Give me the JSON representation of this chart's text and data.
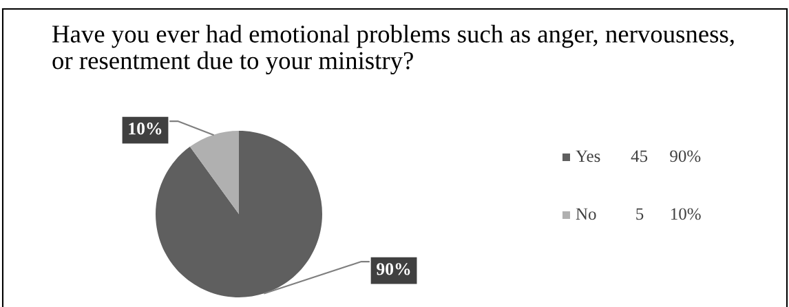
{
  "chart_data": {
    "type": "pie",
    "title": "Have you ever had emotional problems such as anger, nervousness,\nor resentment due to your ministry?",
    "categories": [
      "Yes       45     90%",
      "No         5      10%"
    ],
    "values": [
      90,
      10
    ],
    "colors": [
      "#5f5f5f",
      "#b0b0b0"
    ],
    "value_labels": [
      "90%",
      "10%"
    ],
    "legend": "right"
  }
}
